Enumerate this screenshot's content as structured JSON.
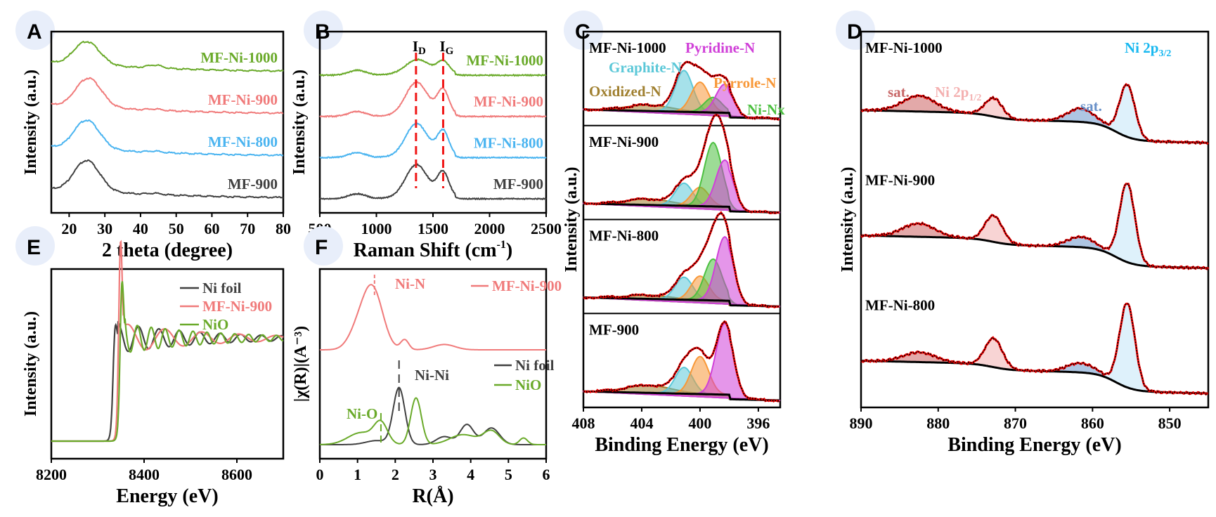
{
  "panel_letters": [
    "A",
    "B",
    "C",
    "D",
    "E",
    "F"
  ],
  "chart_data": [
    {
      "id": "A",
      "type": "line",
      "title": "",
      "xlabel": "2 theta (degree)",
      "ylabel": "Intensity (a.u.)",
      "xlim": [
        15,
        80
      ],
      "xticks": [
        20,
        30,
        40,
        50,
        60,
        70,
        80
      ],
      "series": [
        {
          "name": "MF-Ni-1000",
          "color": "#6aaa2a",
          "offset": 3,
          "peak_x": 25,
          "peak_h": 0.6,
          "tail": 0.1
        },
        {
          "name": "MF-Ni-900",
          "color": "#f07a7a",
          "offset": 2,
          "peak_x": 25.5,
          "peak_h": 0.75,
          "tail": 0.1
        },
        {
          "name": "MF-Ni-800",
          "color": "#4ab4f0",
          "offset": 1,
          "peak_x": 25,
          "peak_h": 0.75,
          "tail": 0.1
        },
        {
          "name": "MF-900",
          "color": "#404040",
          "offset": 0,
          "peak_x": 25,
          "peak_h": 0.8,
          "tail": 0.1
        }
      ]
    },
    {
      "id": "B",
      "type": "line",
      "xlabel": "Raman Shift (cm⁻¹)",
      "ylabel": "Intensity (a.u.)",
      "xlim": [
        500,
        2500
      ],
      "xticks": [
        500,
        1000,
        1500,
        2000,
        2500
      ],
      "markers": [
        {
          "label": "I",
          "sub": "D",
          "x": 1350
        },
        {
          "label": "I",
          "sub": "G",
          "x": 1590
        }
      ],
      "series": [
        {
          "name": "MF-Ni-1000",
          "color": "#6aaa2a",
          "offset": 3,
          "d": 0.25,
          "g": 0.25
        },
        {
          "name": "MF-Ni-900",
          "color": "#f07a7a",
          "offset": 2,
          "d": 0.7,
          "g": 0.55
        },
        {
          "name": "MF-Ni-800",
          "color": "#4ab4f0",
          "offset": 1,
          "d": 0.7,
          "g": 0.55
        },
        {
          "name": "MF-900",
          "color": "#404040",
          "offset": 0,
          "d": 0.7,
          "g": 0.55
        }
      ]
    },
    {
      "id": "C",
      "type": "area",
      "xlabel": "Binding Energy (eV)",
      "ylabel": "Intensity (a.u.)",
      "xlim": [
        408,
        394.5
      ],
      "xticks": [
        408,
        404,
        400,
        396
      ],
      "components": [
        {
          "name": "Oxidized-N",
          "color": "#a08030",
          "center": 403.5
        },
        {
          "name": "Graphite-N",
          "color": "#5cc8d8",
          "center": 401.1
        },
        {
          "name": "Pyrrole-N",
          "color": "#f89838",
          "center": 400.0
        },
        {
          "name": "Ni-Nx",
          "color": "#4cc040",
          "center": 399.1
        },
        {
          "name": "Pyridine-N",
          "color": "#d040d8",
          "center": 398.3
        }
      ],
      "samples": [
        {
          "name": "MF-Ni-1000",
          "amps": [
            0.08,
            0.55,
            0.4,
            0.2,
            0.38
          ]
        },
        {
          "name": "MF-Ni-900",
          "amps": [
            0.08,
            0.3,
            0.25,
            0.85,
            0.62
          ]
        },
        {
          "name": "MF-Ni-800",
          "amps": [
            0.05,
            0.3,
            0.32,
            0.55,
            0.85
          ]
        },
        {
          "name": "MF-900",
          "amps": [
            0.1,
            0.35,
            0.5,
            0,
            0.95
          ]
        }
      ]
    },
    {
      "id": "D",
      "type": "area",
      "xlabel": "Binding Energy (eV)",
      "ylabel": "Intensity (a.u.)",
      "xlim": [
        890,
        845
      ],
      "xticks": [
        890,
        880,
        870,
        860,
        850
      ],
      "annotations": [
        {
          "text": "sat.",
          "color": "#c86868"
        },
        {
          "text": "Ni 2p",
          "sub": "1/2",
          "color": "#f4b0b0"
        },
        {
          "text": "sat.",
          "color": "#6890c8"
        },
        {
          "text": "Ni 2p",
          "sub": "3/2",
          "color": "#18b8f0"
        }
      ],
      "peaks": [
        {
          "name": "sat. (2p1/2)",
          "center": 882.5,
          "color": "#d07070"
        },
        {
          "name": "Ni 2p1/2",
          "center": 872.8,
          "color": "#f4b8b8"
        },
        {
          "name": "sat. (2p3/2)",
          "center": 861.5,
          "color": "#78a0d0"
        },
        {
          "name": "Ni 2p3/2",
          "center": 855.5,
          "color": "#c8e8f8"
        }
      ],
      "samples": [
        {
          "name": "MF-Ni-1000",
          "amps": [
            0.3,
            0.35,
            0.25,
            1.0
          ]
        },
        {
          "name": "MF-Ni-900",
          "amps": [
            0.25,
            0.5,
            0.2,
            1.5
          ]
        },
        {
          "name": "MF-Ni-800",
          "amps": [
            0.18,
            0.55,
            0.18,
            1.6
          ]
        }
      ]
    },
    {
      "id": "E",
      "type": "line",
      "xlabel": "Energy (eV)",
      "ylabel": "Intensity (a.u.)",
      "xlim": [
        8200,
        8700
      ],
      "xticks": [
        8200,
        8400,
        8600
      ],
      "legend": "top-right",
      "series": [
        {
          "name": "Ni foil",
          "color": "#404040",
          "edge": 8333,
          "whiteline": 0.75
        },
        {
          "name": "MF-Ni-900",
          "color": "#f07a7a",
          "edge": 8345,
          "whiteline": 1.6
        },
        {
          "name": "NiO",
          "color": "#6aaa2a",
          "edge": 8348,
          "whiteline": 1.2
        }
      ]
    },
    {
      "id": "F",
      "type": "line",
      "xlabel": "R(Å)",
      "ylabel": "|χ(R)|(A⁻³)",
      "xlim": [
        0,
        6
      ],
      "xticks": [
        0,
        1,
        2,
        3,
        4,
        5,
        6
      ],
      "annotations": [
        {
          "text": "Ni-N",
          "color": "#f07a7a",
          "x": 1.45
        },
        {
          "text": "Ni-Ni",
          "color": "#404040",
          "x": 2.1
        },
        {
          "text": "Ni-O",
          "color": "#6aaa2a",
          "x": 1.62
        }
      ],
      "legend": [
        "MF-Ni-900",
        "Ni foil",
        "NiO"
      ],
      "series": [
        {
          "name": "MF-Ni-900",
          "color": "#f07a7a",
          "peak": 1.45
        },
        {
          "name": "Ni foil",
          "color": "#404040",
          "peak": 2.1
        },
        {
          "name": "NiO",
          "color": "#6aaa2a",
          "peak": 2.55
        }
      ]
    }
  ]
}
